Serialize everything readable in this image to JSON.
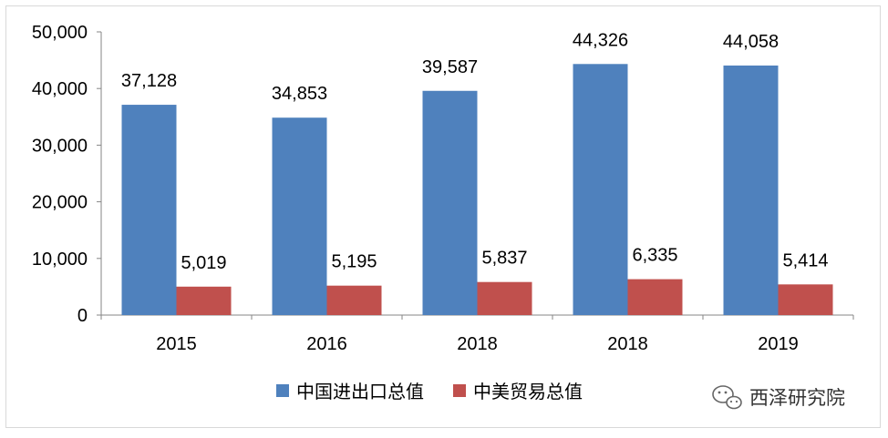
{
  "chart_data": {
    "type": "bar",
    "categories": [
      "2015",
      "2016",
      "2018",
      "2018",
      "2019"
    ],
    "series": [
      {
        "name": "中国进出口总值",
        "color": "#4f81bd",
        "values": [
          37128,
          34853,
          39587,
          44326,
          44058
        ],
        "labels": [
          "37,128",
          "34,853",
          "39,587",
          "44,326",
          "44,058"
        ]
      },
      {
        "name": "中美贸易总值",
        "color": "#c0504d",
        "values": [
          5019,
          5195,
          5837,
          6335,
          5414
        ],
        "labels": [
          "5,019",
          "5,195",
          "5,837",
          "6,335",
          "5,414"
        ]
      }
    ],
    "ylim": [
      0,
      50000
    ],
    "yticks": [
      0,
      10000,
      20000,
      30000,
      40000,
      50000
    ],
    "ytick_labels": [
      "0",
      "10,000",
      "20,000",
      "30,000",
      "40,000",
      "50,000"
    ],
    "grid": false,
    "legend_position": "bottom"
  },
  "watermark": {
    "text": "西泽研究院",
    "icon": "wechat-icon"
  }
}
